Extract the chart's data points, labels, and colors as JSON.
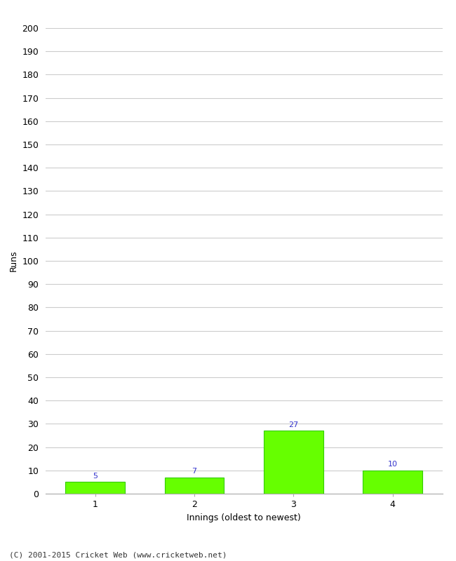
{
  "categories": [
    1,
    2,
    3,
    4
  ],
  "values": [
    5,
    7,
    27,
    10
  ],
  "bar_color": "#66ff00",
  "bar_edge_color": "#33cc00",
  "value_color": "#3333cc",
  "xlabel": "Innings (oldest to newest)",
  "ylabel": "Runs",
  "ylim": [
    0,
    200
  ],
  "yticks": [
    0,
    10,
    20,
    30,
    40,
    50,
    60,
    70,
    80,
    90,
    100,
    110,
    120,
    130,
    140,
    150,
    160,
    170,
    180,
    190,
    200
  ],
  "background_color": "#ffffff",
  "grid_color": "#cccccc",
  "footer": "(C) 2001-2015 Cricket Web (www.cricketweb.net)",
  "value_fontsize": 8,
  "label_fontsize": 9,
  "tick_fontsize": 9,
  "footer_fontsize": 8
}
